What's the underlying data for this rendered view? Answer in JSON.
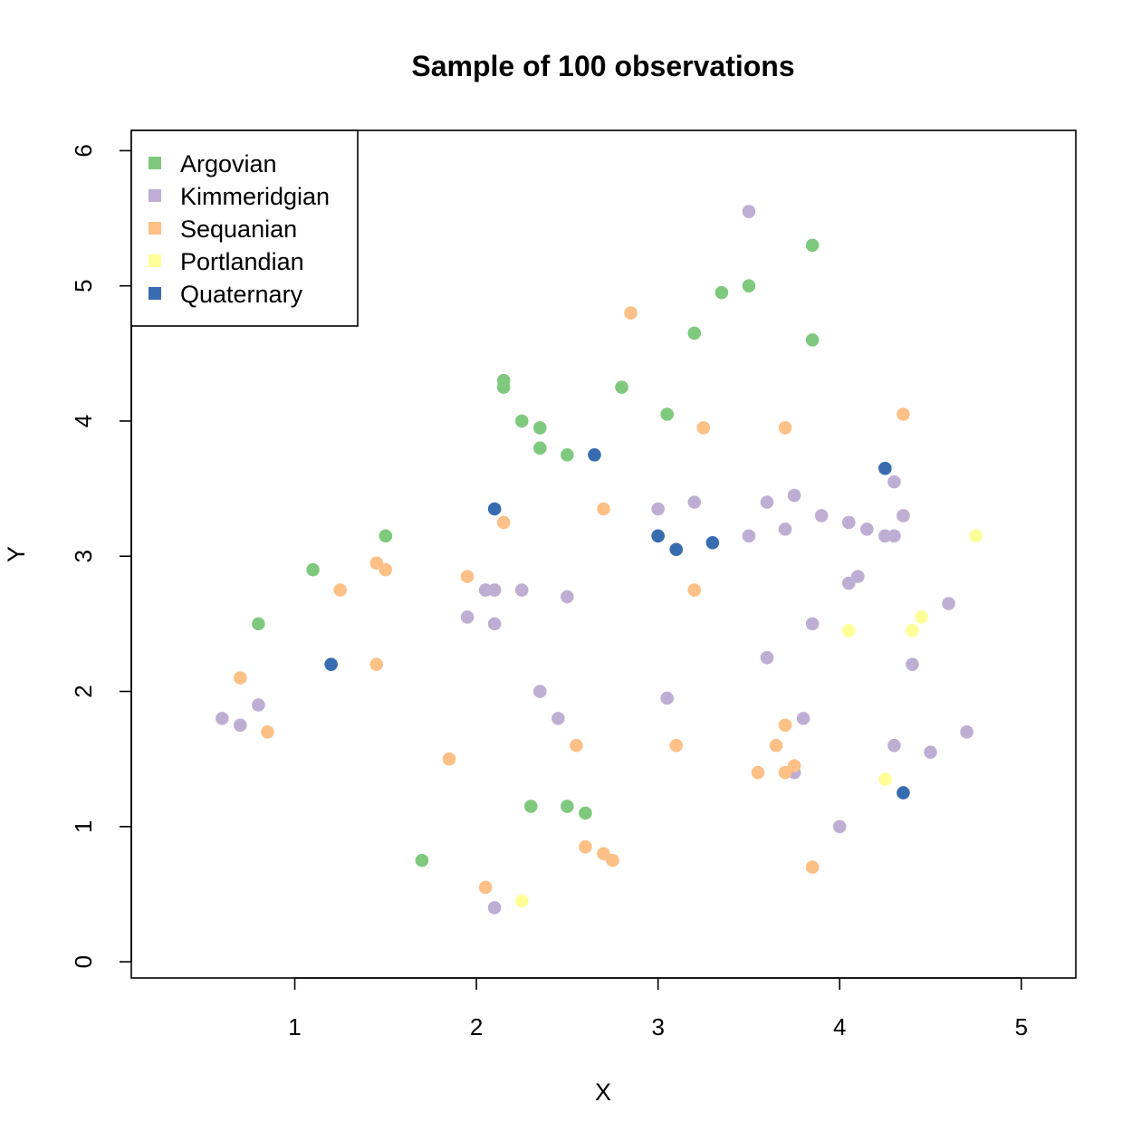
{
  "chart_data": {
    "type": "scatter",
    "title": "Sample of 100 observations",
    "xlabel": "X",
    "ylabel": "Y",
    "xlim": [
      0.1,
      5.3
    ],
    "ylim": [
      -0.12,
      6.15
    ],
    "xticks": [
      1,
      2,
      3,
      4,
      5
    ],
    "yticks": [
      0,
      1,
      2,
      3,
      4,
      5,
      6
    ],
    "grid": false,
    "legend_position": "top-left",
    "series": [
      {
        "name": "Argovian",
        "color": "#7FC97F",
        "x": [
          3.85,
          3.5,
          3.35,
          3.2,
          3.85,
          2.15,
          2.15,
          2.8,
          3.05,
          2.25,
          2.35,
          2.35,
          2.5,
          1.5,
          1.1,
          0.8,
          2.3,
          2.5,
          2.6,
          1.7
        ],
        "y": [
          5.3,
          5.0,
          4.95,
          4.65,
          4.6,
          4.3,
          4.25,
          4.25,
          4.05,
          4.0,
          3.95,
          3.8,
          3.75,
          3.15,
          2.9,
          2.5,
          1.15,
          1.15,
          1.1,
          0.75
        ]
      },
      {
        "name": "Kimmeridgian",
        "color": "#BEAED4",
        "x": [
          3.5,
          4.3,
          3.75,
          3.6,
          3.2,
          3.0,
          4.35,
          3.9,
          4.05,
          3.7,
          4.15,
          4.25,
          4.3,
          3.5,
          4.1,
          4.05,
          2.05,
          2.1,
          2.25,
          2.5,
          4.6,
          1.95,
          2.1,
          3.85,
          3.6,
          4.4,
          2.35,
          3.05,
          0.8,
          0.6,
          0.7,
          2.45,
          3.8,
          4.7,
          4.3,
          4.5,
          3.75,
          4.0,
          2.1
        ],
        "y": [
          5.55,
          3.55,
          3.45,
          3.4,
          3.4,
          3.35,
          3.3,
          3.3,
          3.25,
          3.2,
          3.2,
          3.15,
          3.15,
          3.15,
          2.85,
          2.8,
          2.75,
          2.75,
          2.75,
          2.7,
          2.65,
          2.55,
          2.5,
          2.5,
          2.25,
          2.2,
          2.0,
          1.95,
          1.9,
          1.8,
          1.75,
          1.8,
          1.8,
          1.7,
          1.6,
          1.55,
          1.4,
          1.0,
          0.4
        ]
      },
      {
        "name": "Sequanian",
        "color": "#FDC086",
        "x": [
          2.85,
          4.35,
          3.25,
          3.7,
          2.7,
          2.15,
          1.45,
          1.5,
          1.95,
          1.25,
          3.2,
          1.45,
          0.7,
          0.85,
          1.85,
          2.55,
          3.1,
          3.7,
          3.65,
          3.75,
          3.55,
          3.7,
          2.6,
          2.7,
          2.75,
          2.05,
          3.85
        ],
        "y": [
          4.8,
          4.05,
          3.95,
          3.95,
          3.35,
          3.25,
          2.95,
          2.9,
          2.85,
          2.75,
          2.75,
          2.2,
          2.1,
          1.7,
          1.5,
          1.6,
          1.6,
          1.75,
          1.6,
          1.45,
          1.4,
          1.4,
          0.85,
          0.8,
          0.75,
          0.55,
          0.7
        ]
      },
      {
        "name": "Portlandian",
        "color": "#FFFF99",
        "x": [
          4.75,
          4.45,
          4.05,
          4.4,
          4.25,
          2.25
        ],
        "y": [
          3.15,
          2.55,
          2.45,
          2.45,
          1.35,
          0.45
        ]
      },
      {
        "name": "Quaternary",
        "color": "#386CB0",
        "x": [
          2.65,
          4.25,
          2.1,
          3.0,
          3.1,
          3.3,
          1.2,
          4.35
        ],
        "y": [
          3.75,
          3.65,
          3.35,
          3.15,
          3.05,
          3.1,
          2.2,
          1.25
        ]
      }
    ]
  }
}
